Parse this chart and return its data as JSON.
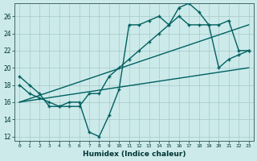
{
  "xlabel": "Humidex (Indice chaleur)",
  "bg_color": "#cceaea",
  "grid_color": "#b8d8d8",
  "line_color": "#006060",
  "xlim": [
    -0.5,
    23.5
  ],
  "ylim": [
    11.5,
    27.5
  ],
  "xticks": [
    0,
    1,
    2,
    3,
    4,
    5,
    6,
    7,
    8,
    9,
    10,
    11,
    12,
    13,
    14,
    15,
    16,
    17,
    18,
    19,
    20,
    21,
    22,
    23
  ],
  "yticks": [
    12,
    14,
    16,
    18,
    20,
    22,
    24,
    26
  ],
  "line1_x": [
    0,
    1,
    2,
    3,
    4,
    5,
    6,
    7,
    8,
    9,
    10,
    11,
    12,
    13,
    14,
    15,
    16,
    17,
    18,
    19,
    20,
    21,
    22,
    23
  ],
  "line1_y": [
    19,
    18,
    17,
    15.5,
    15.5,
    16,
    16,
    12.5,
    12,
    14.5,
    17.5,
    25,
    25,
    25.5,
    26,
    25,
    27,
    27.5,
    26.5,
    25,
    20,
    21,
    21.5,
    22
  ],
  "line2_x": [
    0,
    1,
    2,
    3,
    4,
    5,
    6,
    7,
    8,
    9,
    10,
    11,
    12,
    13,
    14,
    15,
    16,
    17,
    18,
    19,
    20,
    21,
    22,
    23
  ],
  "line2_y": [
    18,
    17,
    16.5,
    16,
    15.5,
    15.5,
    15.5,
    17,
    17,
    19,
    20,
    21,
    22,
    23,
    24,
    25,
    26,
    25,
    25,
    25,
    25,
    25.5,
    22,
    22
  ],
  "line3_x": [
    0,
    23
  ],
  "line3_y": [
    16,
    25
  ],
  "line4_x": [
    0,
    23
  ],
  "line4_y": [
    16,
    20
  ],
  "markersize": 2.5,
  "linewidth": 1.0
}
